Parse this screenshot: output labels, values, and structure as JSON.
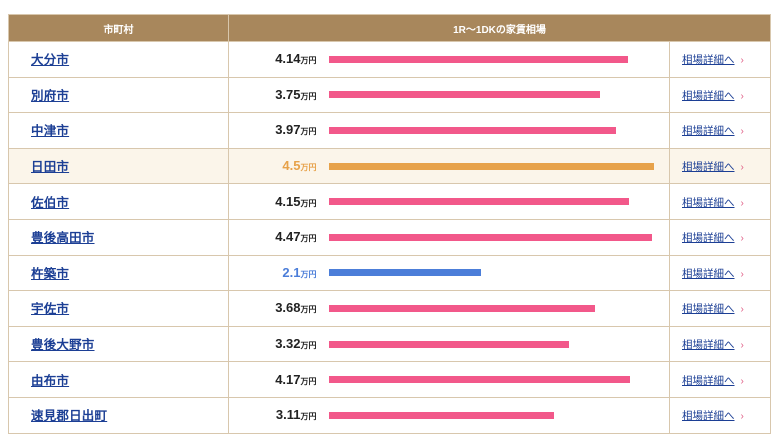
{
  "table": {
    "headers": [
      "市町村",
      "1R〜1DKの家賃相場"
    ],
    "unit": "万円",
    "link_label": "相場詳細へ",
    "chevron": "›",
    "max_value": 4.5,
    "rows": [
      {
        "city": "大分市",
        "value": "4.14",
        "rent": 4.14,
        "status": "normal"
      },
      {
        "city": "別府市",
        "value": "3.75",
        "rent": 3.75,
        "status": "normal"
      },
      {
        "city": "中津市",
        "value": "3.97",
        "rent": 3.97,
        "status": "normal"
      },
      {
        "city": "日田市",
        "value": "4.5",
        "rent": 4.5,
        "status": "high"
      },
      {
        "city": "佐伯市",
        "value": "4.15",
        "rent": 4.15,
        "status": "normal"
      },
      {
        "city": "豊後高田市",
        "value": "4.47",
        "rent": 4.47,
        "status": "normal"
      },
      {
        "city": "杵築市",
        "value": "2.1",
        "rent": 2.1,
        "status": "low"
      },
      {
        "city": "宇佐市",
        "value": "3.68",
        "rent": 3.68,
        "status": "normal"
      },
      {
        "city": "豊後大野市",
        "value": "3.32",
        "rent": 3.32,
        "status": "normal"
      },
      {
        "city": "由布市",
        "value": "4.17",
        "rent": 4.17,
        "status": "normal"
      },
      {
        "city": "速見郡日出町",
        "value": "3.11",
        "rent": 3.11,
        "status": "normal"
      }
    ]
  },
  "colors": {
    "header_bg": "#a8875c",
    "bar_normal": "#f2588a",
    "bar_high": "#e7a24a",
    "bar_low": "#4c7ed9",
    "link": "#1c3f95"
  }
}
